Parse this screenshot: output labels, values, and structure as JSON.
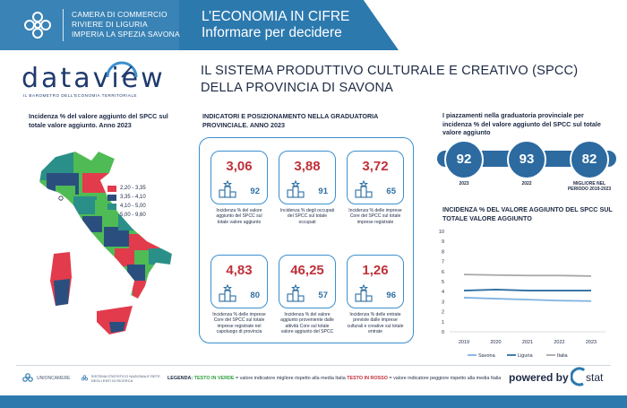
{
  "header": {
    "chamber_lines": [
      "CAMERA DI COMMERCIO",
      "RIVIERE DI LIGURIA",
      "IMPERIA LA SPEZIA SAVONA"
    ],
    "title_lines": [
      "L’ECONOMIA IN CIFRE",
      "Informare per decidere"
    ]
  },
  "brand": {
    "name": "dataview",
    "tagline": "IL BAROMETRO DELL'ECONOMIA TERRITORIALE"
  },
  "main_title_lines": [
    "IL SISTEMA PRODUTTIVO CULTURALE E CREATIVO (SPCC)",
    "DELLA PROVINCIA DI SAVONA"
  ],
  "map": {
    "title": "Incidenza % del valore aggiunto del SPCC sul totale valore aggiunto. Anno 2023",
    "legend": [
      {
        "label": "2,20 - 3,35",
        "color": "#e23b4c"
      },
      {
        "label": "3,35 - 4,10",
        "color": "#2a4f7f"
      },
      {
        "label": "4,10 - 5,00",
        "color": "#2a8f88"
      },
      {
        "label": "5,00 - 9,60",
        "color": "#4fbb55"
      }
    ]
  },
  "indicators": {
    "title": "INDICATORI E POSIZIONAMENTO NELLA GRADUATORIA PROVINCIALE. ANNO 2023",
    "cards": [
      {
        "value": "3,06",
        "rank": "92",
        "desc": "Incidenza % del valore aggiunto del SPCC sul totale valore aggiunto"
      },
      {
        "value": "3,88",
        "rank": "91",
        "desc": "Incidenza % degli occupati del SPCC sul totale occupati"
      },
      {
        "value": "3,72",
        "rank": "65",
        "desc": "Incidenza % delle imprese Core del SPCC sul totale imprese registrate"
      },
      {
        "value": "4,83",
        "rank": "80",
        "desc": "Incidenza % delle imprese Core del SPCC sul totale imprese registrate nel capoluogo di provincia"
      },
      {
        "value": "46,25",
        "rank": "57",
        "desc": "Incidenza % del valore aggiunto proveniente dalle attività Core sul totale valore aggiunto del SPCC"
      },
      {
        "value": "1,26",
        "rank": "96",
        "desc": "Incidenza % delle entrate previste dalle imprese culturali e creative sul totale entrate"
      }
    ]
  },
  "ranking": {
    "title": "I piazzamenti nella graduatoria provinciale per incidenza % del valore aggiunto del SPCC sul totale valore aggiunto",
    "items": [
      {
        "value": "92",
        "label": "2023"
      },
      {
        "value": "93",
        "label": "2022"
      },
      {
        "value": "82",
        "label": "MIGLIORE NEL PERIODO 2019-2023"
      }
    ]
  },
  "chart_title": "INCIDENZA % DEL VALORE AGGIUNTO DEL SPCC SUL TOTALE VALORE AGGIUNTO",
  "chart_data": {
    "type": "line",
    "title": "INCIDENZA % DEL VALORE AGGIUNTO DEL SPCC SUL TOTALE VALORE AGGIUNTO",
    "x": [
      "2019",
      "2020",
      "2021",
      "2022",
      "2023"
    ],
    "yticks": [
      "0",
      "1",
      "2",
      "3",
      "4",
      "5",
      "6",
      "7",
      "8",
      "9",
      "10"
    ],
    "ylim": [
      0,
      10
    ],
    "grid": false,
    "legend_position": "bottom",
    "series": [
      {
        "name": "Savona",
        "values": [
          3.4,
          3.3,
          3.2,
          3.1,
          3.06
        ],
        "color": "#7fb3e0"
      },
      {
        "name": "Liguria",
        "values": [
          4.1,
          4.2,
          4.1,
          4.1,
          4.1
        ],
        "color": "#2d6fa3"
      },
      {
        "name": "Italia",
        "values": [
          5.7,
          5.65,
          5.6,
          5.6,
          5.55
        ],
        "color": "#a7a7a7"
      }
    ]
  },
  "footer": {
    "unioncamere": "UNIONCAMERE",
    "rete": "SISTEMA STATISTICO NAZIONALE RETE DEGLI ENTI DI RICERCA",
    "legend_label": "LEGENDA:",
    "green_label": "TESTO IN VERDE",
    "green_text": " = valore indicatore migliore rispetto alla media Italia ",
    "red_label": "TESTO IN ROSSO",
    "red_text": " = valore indicatore peggiore rispetto alla media Italia",
    "powered": "powered by",
    "istat": "stat"
  }
}
